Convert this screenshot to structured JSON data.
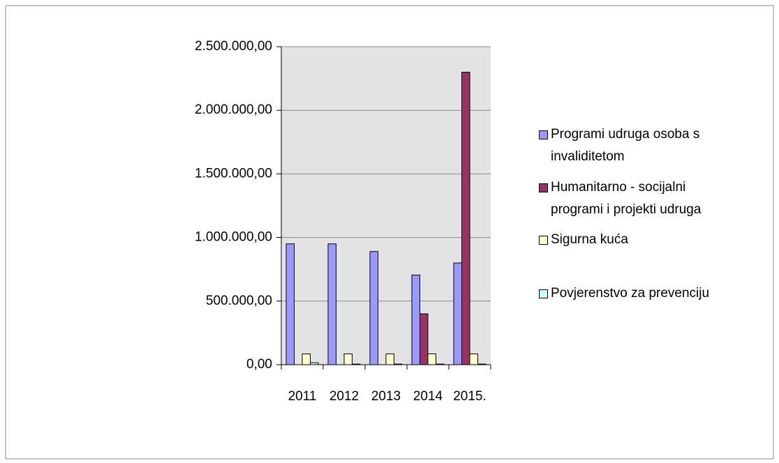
{
  "chart_data": {
    "type": "bar",
    "categories": [
      "2011",
      "2012",
      "2013",
      "2014",
      "2015."
    ],
    "series": [
      {
        "name": "Programi udruga osoba s invaliditetom",
        "color": "#9999ff",
        "values": [
          950000,
          950000,
          890000,
          705000,
          800000
        ]
      },
      {
        "name": "Humanitarno - socijalni programi i projekti udruga",
        "color": "#993366",
        "values": [
          0,
          0,
          0,
          400000,
          2300000
        ]
      },
      {
        "name": "Sigurna kuća",
        "color": "#ffffcc",
        "values": [
          85000,
          85000,
          85000,
          85000,
          85000
        ]
      },
      {
        "name": "Povjerenstvo za prevenciju",
        "color": "#ccffff",
        "values": [
          15000,
          5000,
          5000,
          5000,
          5000
        ]
      }
    ],
    "ylim": [
      0,
      2500000
    ],
    "yticks": [
      {
        "value": 0,
        "label": "0,00"
      },
      {
        "value": 500000,
        "label": "500.000,00"
      },
      {
        "value": 1000000,
        "label": "1.000.000,00"
      },
      {
        "value": 1500000,
        "label": "1.500.000,00"
      },
      {
        "value": 2000000,
        "label": "2.000.000,00"
      },
      {
        "value": 2500000,
        "label": "2.500.000,00"
      }
    ],
    "grid": true,
    "legend": "right"
  }
}
